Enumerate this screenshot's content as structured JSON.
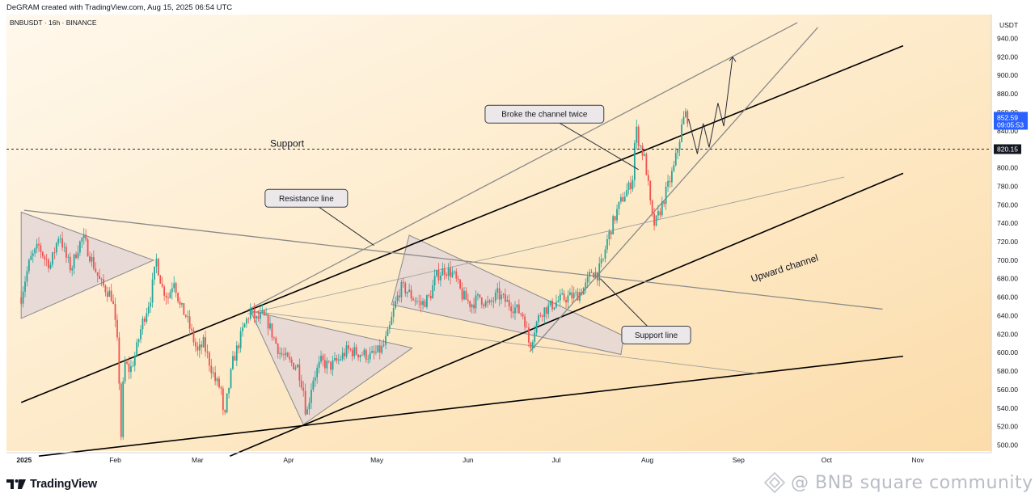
{
  "header": {
    "created_text": "DeGRAM created with TradingView.com, Aug 15, 2025 06:54 UTC"
  },
  "chart_data": {
    "type": "candlestick",
    "symbol": "BNBUSDT · 16h · BINANCE",
    "currency": "USDT",
    "y_axis": {
      "range": [
        490,
        955
      ],
      "ticks": [
        "940.00",
        "920.00",
        "900.00",
        "880.00",
        "860.00",
        "840.00",
        "820.00",
        "800.00",
        "780.00",
        "760.00",
        "740.00",
        "720.00",
        "700.00",
        "680.00",
        "660.00",
        "640.00",
        "620.00",
        "600.00",
        "580.00",
        "560.00",
        "540.00",
        "520.00",
        "500.00"
      ]
    },
    "x_axis": {
      "ticks": [
        "2025",
        "Feb",
        "Mar",
        "Apr",
        "May",
        "Jun",
        "Jul",
        "Aug",
        "Sep",
        "Oct",
        "Nov"
      ]
    },
    "grid": false,
    "colors": {
      "up": "#26a69a",
      "down": "#ef5350",
      "background_fill": "#fde8c0",
      "last_price": "#2962ff"
    },
    "last_price": {
      "value": "852.59",
      "countdown": "09:05:53"
    },
    "support_level": {
      "value": "820.15",
      "label": "Support"
    },
    "price_path": [
      [
        "2024-12-31",
        660
      ],
      [
        "2025-01-01",
        675
      ],
      [
        "2025-01-03",
        700
      ],
      [
        "2025-01-06",
        715
      ],
      [
        "2025-01-08",
        702
      ],
      [
        "2025-01-10",
        695
      ],
      [
        "2025-01-13",
        730
      ],
      [
        "2025-01-15",
        705
      ],
      [
        "2025-01-17",
        690
      ],
      [
        "2025-01-19",
        712
      ],
      [
        "2025-01-21",
        725
      ],
      [
        "2025-01-24",
        700
      ],
      [
        "2025-01-27",
        675
      ],
      [
        "2025-01-29",
        668
      ],
      [
        "2025-01-31",
        660
      ],
      [
        "2025-02-02",
        600
      ],
      [
        "2025-02-03",
        510
      ],
      [
        "2025-02-04",
        590
      ],
      [
        "2025-02-06",
        580
      ],
      [
        "2025-02-08",
        600
      ],
      [
        "2025-02-10",
        630
      ],
      [
        "2025-02-13",
        660
      ],
      [
        "2025-02-15",
        700
      ],
      [
        "2025-02-17",
        670
      ],
      [
        "2025-02-19",
        660
      ],
      [
        "2025-02-21",
        680
      ],
      [
        "2025-02-23",
        650
      ],
      [
        "2025-02-25",
        640
      ],
      [
        "2025-02-27",
        620
      ],
      [
        "2025-03-01",
        600
      ],
      [
        "2025-03-03",
        610
      ],
      [
        "2025-03-05",
        590
      ],
      [
        "2025-03-07",
        570
      ],
      [
        "2025-03-09",
        560
      ],
      [
        "2025-03-10",
        520
      ],
      [
        "2025-03-11",
        550
      ],
      [
        "2025-03-13",
        590
      ],
      [
        "2025-03-15",
        610
      ],
      [
        "2025-03-17",
        630
      ],
      [
        "2025-03-19",
        645
      ],
      [
        "2025-03-21",
        635
      ],
      [
        "2025-03-23",
        640
      ],
      [
        "2025-03-25",
        632
      ],
      [
        "2025-03-27",
        615
      ],
      [
        "2025-03-29",
        600
      ],
      [
        "2025-04-01",
        590
      ],
      [
        "2025-04-04",
        585
      ],
      [
        "2025-04-06",
        560
      ],
      [
        "2025-04-07",
        530
      ],
      [
        "2025-04-09",
        570
      ],
      [
        "2025-04-12",
        590
      ],
      [
        "2025-04-15",
        585
      ],
      [
        "2025-04-18",
        592
      ],
      [
        "2025-04-21",
        603
      ],
      [
        "2025-04-24",
        600
      ],
      [
        "2025-04-27",
        598
      ],
      [
        "2025-04-29",
        596
      ],
      [
        "2025-05-01",
        600
      ],
      [
        "2025-05-03",
        605
      ],
      [
        "2025-05-05",
        622
      ],
      [
        "2025-05-07",
        650
      ],
      [
        "2025-05-09",
        670
      ],
      [
        "2025-05-11",
        668
      ],
      [
        "2025-05-13",
        660
      ],
      [
        "2025-05-16",
        652
      ],
      [
        "2025-05-19",
        660
      ],
      [
        "2025-05-21",
        682
      ],
      [
        "2025-05-24",
        690
      ],
      [
        "2025-05-27",
        685
      ],
      [
        "2025-05-30",
        662
      ],
      [
        "2025-06-02",
        652
      ],
      [
        "2025-06-05",
        660
      ],
      [
        "2025-06-08",
        650
      ],
      [
        "2025-06-11",
        663
      ],
      [
        "2025-06-14",
        655
      ],
      [
        "2025-06-17",
        648
      ],
      [
        "2025-06-20",
        640
      ],
      [
        "2025-06-22",
        606
      ],
      [
        "2025-06-24",
        630
      ],
      [
        "2025-06-26",
        645
      ],
      [
        "2025-06-29",
        650
      ],
      [
        "2025-07-02",
        657
      ],
      [
        "2025-07-05",
        660
      ],
      [
        "2025-07-08",
        662
      ],
      [
        "2025-07-11",
        672
      ],
      [
        "2025-07-13",
        688
      ],
      [
        "2025-07-15",
        685
      ],
      [
        "2025-07-17",
        700
      ],
      [
        "2025-07-18",
        718
      ],
      [
        "2025-07-20",
        738
      ],
      [
        "2025-07-22",
        756
      ],
      [
        "2025-07-24",
        770
      ],
      [
        "2025-07-26",
        780
      ],
      [
        "2025-07-27",
        790
      ],
      [
        "2025-07-28",
        845
      ],
      [
        "2025-07-29",
        830
      ],
      [
        "2025-07-31",
        810
      ],
      [
        "2025-08-01",
        790
      ],
      [
        "2025-08-02",
        760
      ],
      [
        "2025-08-03",
        738
      ],
      [
        "2025-08-04",
        742
      ],
      [
        "2025-08-06",
        760
      ],
      [
        "2025-08-08",
        780
      ],
      [
        "2025-08-10",
        800
      ],
      [
        "2025-08-12",
        832
      ],
      [
        "2025-08-13",
        850
      ],
      [
        "2025-08-14",
        858
      ],
      [
        "2025-08-15",
        852.59
      ]
    ],
    "projection": [
      [
        "2025-08-15",
        853
      ],
      [
        "2025-08-18",
        815
      ],
      [
        "2025-08-20",
        848
      ],
      [
        "2025-08-22",
        822
      ],
      [
        "2025-08-25",
        870
      ],
      [
        "2025-08-27",
        845
      ],
      [
        "2025-08-30",
        920
      ]
    ],
    "trendlines": [
      {
        "id": "upward-channel-upper",
        "color": "#000000",
        "from": [
          "2024-12-31",
          546
        ],
        "to": [
          "2025-10-27",
          932
        ]
      },
      {
        "id": "upward-channel-lower",
        "color": "#000000",
        "from": [
          "2025-03-12",
          488
        ],
        "to": [
          "2025-10-27",
          794
        ]
      },
      {
        "id": "bottom-support",
        "color": "#000000",
        "from": [
          "2025-01-06",
          488
        ],
        "to": [
          "2025-10-27",
          596
        ]
      },
      {
        "id": "outer-channel",
        "color": "#8a8a8a",
        "from": [
          "2025-03-18",
          646
        ],
        "to": [
          "2025-09-21",
          957
        ]
      },
      {
        "id": "steep-support",
        "color": "#8a8a8a",
        "from": [
          "2025-06-22",
          601
        ],
        "to": [
          "2025-09-28",
          952
        ]
      },
      {
        "id": "resistance-line",
        "color": "#8a8a8a",
        "from": [
          "2025-01-01",
          754
        ],
        "to": [
          "2025-10-20",
          647
        ]
      },
      {
        "id": "thin-diagonal",
        "color": "#9a9a9a",
        "from": [
          "2025-03-18",
          642
        ],
        "to": [
          "2025-10-07",
          790
        ]
      },
      {
        "id": "flag-extension",
        "color": "#9a9a9a",
        "from": [
          "2025-03-19",
          645
        ],
        "to": [
          "2025-09-08",
          577
        ]
      }
    ],
    "patterns": [
      {
        "id": "triangle-jan",
        "points": [
          [
            "2024-12-31",
            752
          ],
          [
            "2025-02-14",
            700
          ],
          [
            "2024-12-31",
            637
          ]
        ]
      },
      {
        "id": "triangle-apr",
        "points": [
          [
            "2025-03-19",
            645
          ],
          [
            "2025-05-13",
            605
          ],
          [
            "2025-04-06",
            522
          ]
        ]
      },
      {
        "id": "flag-jun",
        "points": [
          [
            "2025-05-12",
            727
          ],
          [
            "2025-07-24",
            618
          ],
          [
            "2025-07-23",
            598
          ],
          [
            "2025-05-06",
            652
          ]
        ]
      }
    ],
    "annotations": [
      {
        "text": "Broke the channel twice",
        "at": [
          "2025-06-27",
          858
        ],
        "arrow_to": [
          "2025-07-29",
          798
        ]
      },
      {
        "text": "Resistance line",
        "at": [
          "2025-04-07",
          767
        ],
        "arrow_to": [
          "2025-04-30",
          716
        ]
      },
      {
        "text": "Support line",
        "at": [
          "2025-08-04",
          619
        ],
        "arrow_to": [
          "2025-07-16",
          680
        ]
      },
      {
        "text": "Upward channel",
        "at": [
          "2025-09-17",
          688
        ]
      }
    ]
  },
  "footer": {
    "brand": "TradingView",
    "watermark": "@ BNB square community"
  }
}
